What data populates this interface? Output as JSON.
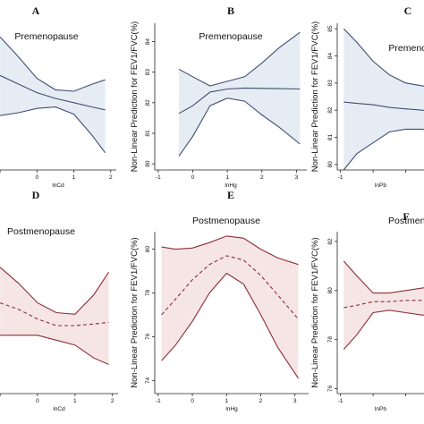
{
  "colors": {
    "blue_line": "#3f4f72",
    "blue_fill": "#e5ecf4",
    "red_line": "#8e2d35",
    "red_fill": "#f6e5e5",
    "axis": "#222222"
  },
  "chart_data": [
    {
      "id": "A",
      "letter": "A",
      "title": "Premenopause",
      "type": "line",
      "xlabel": "lnCd",
      "ylabel": "",
      "xlim": [
        -1.05,
        2.15
      ],
      "ylim": [
        0,
        1
      ],
      "xticks": [
        -1,
        0,
        1,
        2
      ],
      "xtick_labels": [
        "",
        "0",
        "1",
        "2"
      ],
      "yticks": [],
      "ytick_labels": [],
      "series": [
        {
          "role": "fit",
          "style": "solid",
          "x": [
            -1.0,
            -0.5,
            0.0,
            0.5,
            1.0,
            1.5,
            1.85
          ],
          "y": [
            0.66,
            0.6,
            0.54,
            0.5,
            0.47,
            0.44,
            0.42
          ]
        },
        {
          "role": "upper",
          "x": [
            -1.0,
            -0.5,
            0.0,
            0.5,
            1.0,
            1.5,
            1.85
          ],
          "y": [
            0.93,
            0.79,
            0.64,
            0.56,
            0.55,
            0.6,
            0.63
          ]
        },
        {
          "role": "lower",
          "x": [
            -1.0,
            -0.5,
            0.0,
            0.5,
            1.0,
            1.5,
            1.85
          ],
          "y": [
            0.38,
            0.4,
            0.43,
            0.44,
            0.39,
            0.24,
            0.12
          ]
        }
      ]
    },
    {
      "id": "B",
      "letter": "B",
      "title": "Premenopause",
      "type": "line",
      "xlabel": "lnHg",
      "ylabel": "Non-Linear Prediction for FEV1/FVC(%)",
      "xlim": [
        -1.1,
        3.3
      ],
      "ylim": [
        79.8,
        84.6
      ],
      "xticks": [
        -1,
        0,
        1,
        2,
        3
      ],
      "xtick_labels": [
        "-1",
        "0",
        "1",
        "2",
        "3"
      ],
      "yticks": [
        80,
        81,
        82,
        83,
        84
      ],
      "ytick_labels": [
        "80",
        "81",
        "82",
        "83",
        "84"
      ],
      "series": [
        {
          "role": "fit",
          "style": "solid",
          "x": [
            -0.4,
            0.0,
            0.5,
            1.0,
            1.5,
            2.0,
            2.5,
            3.1
          ],
          "y": [
            81.65,
            81.9,
            82.35,
            82.45,
            82.48,
            82.47,
            82.46,
            82.45
          ]
        },
        {
          "role": "upper",
          "x": [
            -0.4,
            0.0,
            0.5,
            1.0,
            1.5,
            2.0,
            2.5,
            3.1
          ],
          "y": [
            83.1,
            82.85,
            82.55,
            82.7,
            82.85,
            83.3,
            83.8,
            84.3
          ]
        },
        {
          "role": "lower",
          "x": [
            -0.4,
            0.0,
            0.5,
            1.0,
            1.5,
            2.0,
            2.5,
            3.1
          ],
          "y": [
            80.25,
            80.9,
            81.9,
            82.15,
            82.05,
            81.6,
            81.2,
            80.65
          ]
        }
      ]
    },
    {
      "id": "C",
      "letter": "C",
      "title": "Premenopause",
      "type": "line",
      "xlabel": "lnPb",
      "ylabel": "Non-Linear Prediction for FEV1/FVC(%)",
      "xlim": [
        -1.1,
        2.0
      ],
      "ylim": [
        79.8,
        85.2
      ],
      "xticks": [
        -1,
        0,
        1
      ],
      "xtick_labels": [
        "-1",
        "",
        ""
      ],
      "yticks": [
        80,
        81,
        82,
        83,
        84,
        85
      ],
      "ytick_labels": [
        "80",
        "81",
        "82",
        "83",
        "84",
        "85"
      ],
      "series": [
        {
          "role": "fit",
          "style": "solid",
          "x": [
            -0.9,
            -0.5,
            0.0,
            0.5,
            1.0,
            1.5,
            1.9
          ],
          "y": [
            82.3,
            82.25,
            82.2,
            82.1,
            82.05,
            82.0,
            81.95
          ]
        },
        {
          "role": "upper",
          "x": [
            -0.9,
            -0.5,
            0.0,
            0.5,
            1.0,
            1.5,
            1.9
          ],
          "y": [
            85.0,
            84.5,
            83.8,
            83.3,
            83.0,
            82.9,
            82.8
          ]
        },
        {
          "role": "lower",
          "x": [
            -0.9,
            -0.5,
            0.0,
            0.5,
            1.0,
            1.5,
            1.9
          ],
          "y": [
            79.8,
            80.4,
            80.8,
            81.2,
            81.3,
            81.3,
            81.2
          ]
        }
      ]
    },
    {
      "id": "D",
      "letter": "D",
      "title": "Postmenopause",
      "type": "line",
      "xlabel": "lnCd",
      "ylabel": "",
      "xlim": [
        -1.05,
        2.15
      ],
      "ylim": [
        0,
        1
      ],
      "xticks": [
        -1,
        0,
        1,
        2
      ],
      "xtick_labels": [
        "",
        "0",
        "1",
        "2"
      ],
      "yticks": [],
      "ytick_labels": [],
      "series": [
        {
          "role": "fit",
          "style": "dashed",
          "x": [
            -1.0,
            -0.5,
            0.0,
            0.5,
            1.0,
            1.5,
            1.9
          ],
          "y": [
            0.56,
            0.52,
            0.46,
            0.42,
            0.42,
            0.43,
            0.44
          ]
        },
        {
          "role": "upper",
          "x": [
            -1.0,
            -0.5,
            0.0,
            0.5,
            1.0,
            1.5,
            1.9
          ],
          "y": [
            0.78,
            0.68,
            0.56,
            0.5,
            0.49,
            0.61,
            0.75
          ]
        },
        {
          "role": "lower",
          "x": [
            -1.0,
            -0.5,
            0.0,
            0.5,
            1.0,
            1.5,
            1.9
          ],
          "y": [
            0.36,
            0.36,
            0.36,
            0.33,
            0.3,
            0.22,
            0.18
          ]
        }
      ]
    },
    {
      "id": "E",
      "letter": "E",
      "title": "Postmenopause",
      "type": "line",
      "xlabel": "lnHg",
      "ylabel": "Non-Linear Prediction for FEV1/FVC(%)",
      "xlim": [
        -1.1,
        3.4
      ],
      "ylim": [
        73.4,
        80.8
      ],
      "xticks": [
        -1,
        0,
        1,
        2,
        3
      ],
      "xtick_labels": [
        "-1",
        "0",
        "1",
        "2",
        "3"
      ],
      "yticks": [
        74,
        76,
        78,
        80
      ],
      "ytick_labels": [
        "74",
        "76",
        "78",
        "80"
      ],
      "series": [
        {
          "role": "fit",
          "style": "dashed",
          "x": [
            -0.9,
            -0.5,
            0.0,
            0.5,
            1.0,
            1.5,
            2.0,
            2.5,
            3.1
          ],
          "y": [
            77.0,
            77.7,
            78.6,
            79.3,
            79.7,
            79.5,
            78.8,
            77.9,
            76.8
          ]
        },
        {
          "role": "upper",
          "x": [
            -0.9,
            -0.5,
            0.0,
            0.5,
            1.0,
            1.5,
            2.0,
            2.5,
            3.1
          ],
          "y": [
            80.1,
            80.0,
            80.05,
            80.3,
            80.6,
            80.5,
            80.0,
            79.6,
            79.3
          ]
        },
        {
          "role": "lower",
          "x": [
            -0.9,
            -0.5,
            0.0,
            0.5,
            1.0,
            1.5,
            2.0,
            2.5,
            3.1
          ],
          "y": [
            74.9,
            75.6,
            76.7,
            78.0,
            78.9,
            78.4,
            77.0,
            75.5,
            74.1
          ]
        }
      ]
    },
    {
      "id": "F",
      "letter": "F",
      "title": "Postmenopause",
      "type": "line",
      "xlabel": "lnPb",
      "ylabel": "Non-Linear Prediction for FEV1/FVC(%)",
      "xlim": [
        -1.1,
        2.0
      ],
      "ylim": [
        75.8,
        82.4
      ],
      "xticks": [
        -1,
        0,
        1
      ],
      "xtick_labels": [
        "-1",
        "",
        ""
      ],
      "yticks": [
        76,
        78,
        80,
        82
      ],
      "ytick_labels": [
        "76",
        "78",
        "80",
        "82"
      ],
      "series": [
        {
          "role": "fit",
          "style": "dashed",
          "x": [
            -0.9,
            -0.5,
            0.0,
            0.5,
            1.0,
            1.5,
            1.9
          ],
          "y": [
            79.3,
            79.4,
            79.55,
            79.55,
            79.6,
            79.6,
            79.6
          ]
        },
        {
          "role": "upper",
          "x": [
            -0.9,
            -0.5,
            0.0,
            0.5,
            1.0,
            1.5,
            1.9
          ],
          "y": [
            81.2,
            80.6,
            79.9,
            79.9,
            80.0,
            80.1,
            80.2
          ]
        },
        {
          "role": "lower",
          "x": [
            -0.9,
            -0.5,
            0.0,
            0.5,
            1.0,
            1.5,
            1.9
          ],
          "y": [
            77.6,
            78.2,
            79.1,
            79.2,
            79.1,
            79.0,
            79.0
          ]
        }
      ]
    }
  ]
}
